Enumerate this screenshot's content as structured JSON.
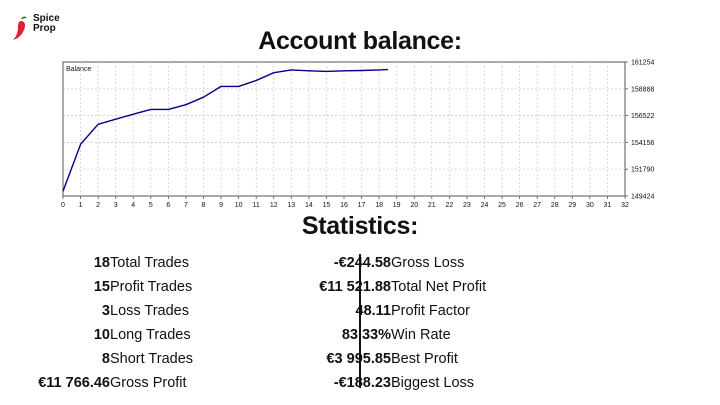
{
  "brand": {
    "line1": "Spice",
    "line2": "Prop",
    "accent": "#d9232e"
  },
  "header": {
    "title": "Account balance:"
  },
  "chart_data": {
    "type": "line",
    "title": "Balance",
    "xlabel": "",
    "ylabel": "",
    "x": [
      0,
      1,
      2,
      3,
      4,
      5,
      6,
      7,
      8,
      9,
      10,
      11,
      12,
      13,
      14,
      15,
      16,
      17,
      18,
      18.5
    ],
    "series": [
      {
        "values": [
          149850,
          154000,
          155750,
          156200,
          156650,
          157070,
          157070,
          157480,
          158150,
          159100,
          159100,
          159620,
          160310,
          160560,
          160480,
          160420,
          160480,
          160500,
          160560,
          160580
        ],
        "color": "#00008b"
      }
    ],
    "xlim": [
      0,
      32
    ],
    "ylim": [
      149424,
      161254
    ],
    "xticks": [
      0,
      1,
      2,
      3,
      4,
      5,
      6,
      7,
      8,
      9,
      10,
      11,
      12,
      13,
      14,
      15,
      16,
      17,
      18,
      19,
      20,
      21,
      22,
      23,
      24,
      25,
      26,
      27,
      28,
      29,
      30,
      31,
      32
    ],
    "yticks": [
      161254,
      158888,
      156522,
      154156,
      151790,
      149424
    ],
    "grid": true,
    "legend": "none"
  },
  "statistics": {
    "title": "Statistics:",
    "left": [
      {
        "label": "Total Trades",
        "value": "18"
      },
      {
        "label": "Profit Trades",
        "value": "15"
      },
      {
        "label": "Loss Trades",
        "value": "3"
      },
      {
        "label": "Long Trades",
        "value": "10"
      },
      {
        "label": "Short Trades",
        "value": "8"
      },
      {
        "label": "Gross Profit",
        "value": "€11 766.46"
      }
    ],
    "right": [
      {
        "label": "Gross Loss",
        "value": "-€244.58"
      },
      {
        "label": "Total Net Profit",
        "value": "€11 521.88"
      },
      {
        "label": "Profit Factor",
        "value": "48.11"
      },
      {
        "label": "Win Rate",
        "value": "83.33%"
      },
      {
        "label": "Best Profit",
        "value": "€3 995.85"
      },
      {
        "label": "Biggest Loss",
        "value": "-€188.23"
      }
    ]
  }
}
